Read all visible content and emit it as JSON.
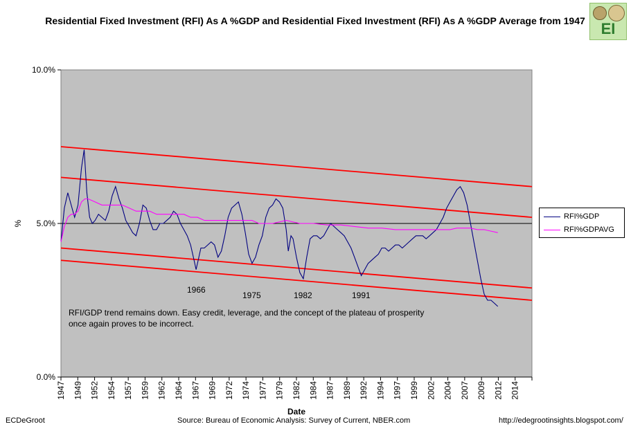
{
  "header": {
    "title": "Residential Fixed Investment (RFI) As A %GDP and Residential Fixed Investment (RFI) As A %GDP Average from 1947",
    "logo_text": "EI"
  },
  "footer": {
    "author": "ECDeGroot",
    "source": "Source:  Bureau of Economic Analysis: Survey of Current, NBER.com",
    "url": "http://edegrootinsights.blogspot.com/"
  },
  "chart_data": {
    "type": "line",
    "title": "Residential Fixed Investment (RFI) As A %GDP and Residential Fixed Investment (RFI) As A %GDP Average from 1947",
    "xlabel": "Date",
    "ylabel": "%",
    "xlim": [
      1947,
      2016
    ],
    "ylim": [
      0,
      10
    ],
    "y_ticks": [
      "0.0%",
      "5.0%",
      "10.0%"
    ],
    "x_ticks": [
      "1947",
      "1949",
      "1952",
      "1954",
      "1957",
      "1959",
      "1962",
      "1964",
      "1967",
      "1969",
      "1972",
      "1974",
      "1977",
      "1979",
      "1982",
      "1984",
      "1987",
      "1989",
      "1992",
      "1994",
      "1997",
      "1999",
      "2002",
      "2004",
      "2007",
      "2009",
      "2012",
      "2014"
    ],
    "grid": false,
    "background": "#c0c0c0",
    "legend_position": "right",
    "series": [
      {
        "name": "RFI%GDP",
        "color": "#000080",
        "points": [
          [
            1947.0,
            4.4
          ],
          [
            1947.5,
            5.5
          ],
          [
            1948.0,
            6.0
          ],
          [
            1948.5,
            5.6
          ],
          [
            1949.0,
            5.2
          ],
          [
            1949.5,
            5.6
          ],
          [
            1950.0,
            6.8
          ],
          [
            1950.4,
            7.4
          ],
          [
            1950.8,
            6.0
          ],
          [
            1951.2,
            5.2
          ],
          [
            1951.6,
            5.0
          ],
          [
            1952.0,
            5.1
          ],
          [
            1952.5,
            5.3
          ],
          [
            1953.0,
            5.2
          ],
          [
            1953.5,
            5.1
          ],
          [
            1954.0,
            5.4
          ],
          [
            1954.5,
            5.9
          ],
          [
            1955.0,
            6.2
          ],
          [
            1955.5,
            5.8
          ],
          [
            1956.0,
            5.5
          ],
          [
            1956.5,
            5.1
          ],
          [
            1957.0,
            4.9
          ],
          [
            1957.5,
            4.7
          ],
          [
            1958.0,
            4.6
          ],
          [
            1958.5,
            5.0
          ],
          [
            1959.0,
            5.6
          ],
          [
            1959.5,
            5.5
          ],
          [
            1960.0,
            5.1
          ],
          [
            1960.5,
            4.8
          ],
          [
            1961.0,
            4.8
          ],
          [
            1961.5,
            5.0
          ],
          [
            1962.0,
            5.0
          ],
          [
            1962.5,
            5.1
          ],
          [
            1963.0,
            5.2
          ],
          [
            1963.5,
            5.4
          ],
          [
            1964.0,
            5.3
          ],
          [
            1964.5,
            5.0
          ],
          [
            1965.0,
            4.8
          ],
          [
            1965.5,
            4.6
          ],
          [
            1966.0,
            4.3
          ],
          [
            1966.5,
            3.8
          ],
          [
            1966.8,
            3.5
          ],
          [
            1967.2,
            3.9
          ],
          [
            1967.5,
            4.2
          ],
          [
            1968.0,
            4.2
          ],
          [
            1968.5,
            4.3
          ],
          [
            1969.0,
            4.4
          ],
          [
            1969.5,
            4.3
          ],
          [
            1970.0,
            3.9
          ],
          [
            1970.5,
            4.1
          ],
          [
            1971.0,
            4.6
          ],
          [
            1971.5,
            5.2
          ],
          [
            1972.0,
            5.5
          ],
          [
            1972.5,
            5.6
          ],
          [
            1973.0,
            5.7
          ],
          [
            1973.5,
            5.3
          ],
          [
            1974.0,
            4.7
          ],
          [
            1974.5,
            4.0
          ],
          [
            1975.0,
            3.7
          ],
          [
            1975.5,
            3.9
          ],
          [
            1976.0,
            4.3
          ],
          [
            1976.5,
            4.6
          ],
          [
            1977.0,
            5.2
          ],
          [
            1977.5,
            5.5
          ],
          [
            1978.0,
            5.6
          ],
          [
            1978.5,
            5.8
          ],
          [
            1979.0,
            5.7
          ],
          [
            1979.5,
            5.5
          ],
          [
            1980.0,
            4.8
          ],
          [
            1980.3,
            4.1
          ],
          [
            1980.7,
            4.6
          ],
          [
            1981.0,
            4.5
          ],
          [
            1981.5,
            3.9
          ],
          [
            1982.0,
            3.4
          ],
          [
            1982.5,
            3.2
          ],
          [
            1983.0,
            3.9
          ],
          [
            1983.5,
            4.5
          ],
          [
            1984.0,
            4.6
          ],
          [
            1984.5,
            4.6
          ],
          [
            1985.0,
            4.5
          ],
          [
            1985.5,
            4.6
          ],
          [
            1986.0,
            4.8
          ],
          [
            1986.5,
            5.0
          ],
          [
            1987.0,
            4.9
          ],
          [
            1987.5,
            4.8
          ],
          [
            1988.0,
            4.7
          ],
          [
            1988.5,
            4.6
          ],
          [
            1989.0,
            4.4
          ],
          [
            1989.5,
            4.2
          ],
          [
            1990.0,
            3.9
          ],
          [
            1990.5,
            3.6
          ],
          [
            1991.0,
            3.3
          ],
          [
            1991.5,
            3.5
          ],
          [
            1992.0,
            3.7
          ],
          [
            1992.5,
            3.8
          ],
          [
            1993.0,
            3.9
          ],
          [
            1993.5,
            4.0
          ],
          [
            1994.0,
            4.2
          ],
          [
            1994.5,
            4.2
          ],
          [
            1995.0,
            4.1
          ],
          [
            1995.5,
            4.2
          ],
          [
            1996.0,
            4.3
          ],
          [
            1996.5,
            4.3
          ],
          [
            1997.0,
            4.2
          ],
          [
            1997.5,
            4.3
          ],
          [
            1998.0,
            4.4
          ],
          [
            1998.5,
            4.5
          ],
          [
            1999.0,
            4.6
          ],
          [
            1999.5,
            4.6
          ],
          [
            2000.0,
            4.6
          ],
          [
            2000.5,
            4.5
          ],
          [
            2001.0,
            4.6
          ],
          [
            2001.5,
            4.7
          ],
          [
            2002.0,
            4.8
          ],
          [
            2002.5,
            5.0
          ],
          [
            2003.0,
            5.2
          ],
          [
            2003.5,
            5.5
          ],
          [
            2004.0,
            5.7
          ],
          [
            2004.5,
            5.9
          ],
          [
            2005.0,
            6.1
          ],
          [
            2005.5,
            6.2
          ],
          [
            2006.0,
            6.0
          ],
          [
            2006.5,
            5.6
          ],
          [
            2007.0,
            5.0
          ],
          [
            2007.5,
            4.4
          ],
          [
            2008.0,
            3.8
          ],
          [
            2008.5,
            3.2
          ],
          [
            2009.0,
            2.7
          ],
          [
            2009.5,
            2.5
          ],
          [
            2010.0,
            2.5
          ],
          [
            2010.5,
            2.4
          ],
          [
            2011.0,
            2.3
          ]
        ]
      },
      {
        "name": "RFI%GDPAVG",
        "color": "#ff00ff",
        "points": [
          [
            1947.0,
            4.4
          ],
          [
            1947.5,
            4.9
          ],
          [
            1948.0,
            5.2
          ],
          [
            1948.5,
            5.3
          ],
          [
            1949.0,
            5.3
          ],
          [
            1949.5,
            5.4
          ],
          [
            1950.0,
            5.7
          ],
          [
            1950.5,
            5.8
          ],
          [
            1951.0,
            5.8
          ],
          [
            1952.0,
            5.7
          ],
          [
            1953.0,
            5.6
          ],
          [
            1954.0,
            5.6
          ],
          [
            1955.0,
            5.6
          ],
          [
            1956.0,
            5.6
          ],
          [
            1957.0,
            5.5
          ],
          [
            1958.0,
            5.4
          ],
          [
            1959.0,
            5.4
          ],
          [
            1960.0,
            5.4
          ],
          [
            1961.0,
            5.3
          ],
          [
            1962.0,
            5.3
          ],
          [
            1963.0,
            5.3
          ],
          [
            1964.0,
            5.3
          ],
          [
            1965.0,
            5.3
          ],
          [
            1966.0,
            5.2
          ],
          [
            1967.0,
            5.2
          ],
          [
            1968.0,
            5.1
          ],
          [
            1969.0,
            5.1
          ],
          [
            1970.0,
            5.1
          ],
          [
            1972.0,
            5.1
          ],
          [
            1974.0,
            5.1
          ],
          [
            1975.0,
            5.1
          ],
          [
            1976.0,
            5.0
          ],
          [
            1978.0,
            5.0
          ],
          [
            1980.0,
            5.1
          ],
          [
            1982.0,
            5.0
          ],
          [
            1984.0,
            5.0
          ],
          [
            1986.0,
            4.95
          ],
          [
            1988.0,
            4.95
          ],
          [
            1990.0,
            4.9
          ],
          [
            1992.0,
            4.85
          ],
          [
            1994.0,
            4.85
          ],
          [
            1996.0,
            4.8
          ],
          [
            1998.0,
            4.8
          ],
          [
            2000.0,
            4.8
          ],
          [
            2002.0,
            4.8
          ],
          [
            2004.0,
            4.8
          ],
          [
            2005.0,
            4.85
          ],
          [
            2006.0,
            4.85
          ],
          [
            2007.0,
            4.85
          ],
          [
            2008.0,
            4.8
          ],
          [
            2009.0,
            4.8
          ],
          [
            2010.0,
            4.75
          ],
          [
            2011.0,
            4.7
          ]
        ]
      }
    ],
    "reference_lines": [
      {
        "color": "#000000",
        "points": [
          [
            1947,
            5.0
          ],
          [
            2016,
            5.0
          ]
        ]
      },
      {
        "color": "#ff0000",
        "points": [
          [
            1947,
            7.5
          ],
          [
            2016,
            6.2
          ]
        ]
      },
      {
        "color": "#ff0000",
        "points": [
          [
            1947,
            6.5
          ],
          [
            2016,
            5.2
          ]
        ]
      },
      {
        "color": "#ff0000",
        "points": [
          [
            1947,
            4.2
          ],
          [
            2016,
            2.9
          ]
        ]
      },
      {
        "color": "#ff0000",
        "points": [
          [
            1947,
            3.8
          ],
          [
            2016,
            2.5
          ]
        ]
      }
    ],
    "annotations": [
      {
        "text": "1966"
      },
      {
        "text": "1975"
      },
      {
        "text": "1982"
      },
      {
        "text": "1991"
      },
      {
        "text": "RFI/GDP trend remains down.  Easy credit, leverage, and the concept of the plateau of prosperity once again proves to be incorrect."
      }
    ]
  }
}
